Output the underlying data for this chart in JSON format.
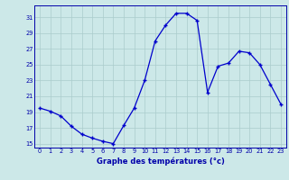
{
  "hours": [
    0,
    1,
    2,
    3,
    4,
    5,
    6,
    7,
    8,
    9,
    10,
    11,
    12,
    13,
    14,
    15,
    16,
    17,
    18,
    19,
    20,
    21,
    22,
    23
  ],
  "temps": [
    19.5,
    19.1,
    18.5,
    17.2,
    16.2,
    15.7,
    15.3,
    15.0,
    17.3,
    19.5,
    23.0,
    28.0,
    30.0,
    31.5,
    31.5,
    30.6,
    21.5,
    24.8,
    25.2,
    26.7,
    26.5,
    25.0,
    22.5,
    20.0
  ],
  "line_color": "#0000cc",
  "marker": "+",
  "bg_color": "#cce8e8",
  "grid_color": "#aacccc",
  "axis_color": "#0000aa",
  "title": "Graphe des températures (°c)",
  "ylim": [
    14.5,
    32.5
  ],
  "yticks": [
    15,
    17,
    19,
    21,
    23,
    25,
    27,
    29,
    31
  ],
  "xlim": [
    -0.5,
    23.5
  ],
  "xticks": [
    0,
    1,
    2,
    3,
    4,
    5,
    6,
    7,
    8,
    9,
    10,
    11,
    12,
    13,
    14,
    15,
    16,
    17,
    18,
    19,
    20,
    21,
    22,
    23
  ],
  "xlabel_fontsize": 6.0,
  "tick_fontsize": 4.8,
  "marker_size": 3.5,
  "line_width": 0.9
}
